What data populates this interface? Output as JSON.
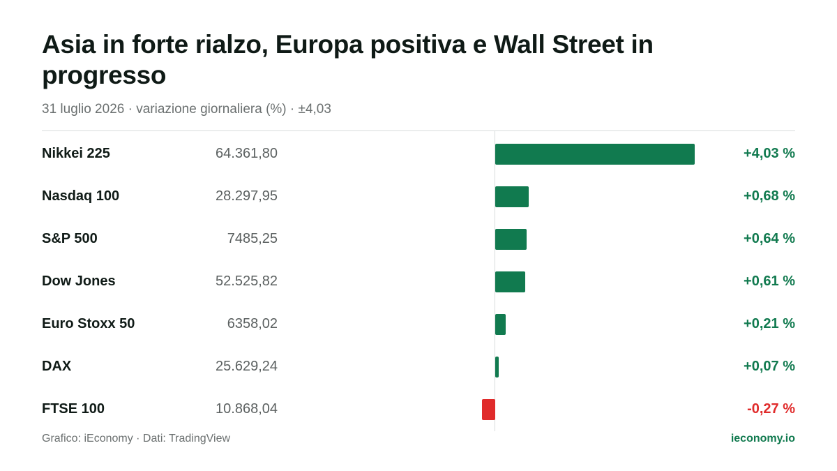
{
  "header": {
    "title": "Asia in forte rialzo, Europa positiva e Wall Street in progresso",
    "subtitle": "31 luglio 2026 · variazione giornaliera (%) · ±4,03"
  },
  "footer": {
    "source": "Grafico: iEconomy · Dati: TradingView",
    "site": "ieconomy.io"
  },
  "colors": {
    "positive": "#117a4f",
    "negative": "#e02b2b"
  },
  "chart_data": {
    "type": "bar",
    "orientation": "horizontal",
    "title": "Asia in forte rialzo, Europa positiva e Wall Street in progresso",
    "subtitle": "31 luglio 2026 · variazione giornaliera (%) · ±4,03",
    "categories": [
      "Nikkei 225",
      "Nasdaq 100",
      "S&P 500",
      "Dow Jones",
      "Euro Stoxx 50",
      "DAX",
      "FTSE 100"
    ],
    "values": [
      4.03,
      0.68,
      0.64,
      0.61,
      0.21,
      0.07,
      -0.27
    ],
    "value_labels": [
      "+4,03 %",
      "+0,68 %",
      "+0,64 %",
      "+0,61 %",
      "+0,21 %",
      "+0,07 %",
      "-0,27 %"
    ],
    "prices": [
      "64.361,80",
      "28.297,95",
      "7485,25",
      "52.525,82",
      "6358,02",
      "25.629,24",
      "10.868,04"
    ],
    "xlim": [
      -4.03,
      4.03
    ],
    "grid": false,
    "legend": "none"
  }
}
